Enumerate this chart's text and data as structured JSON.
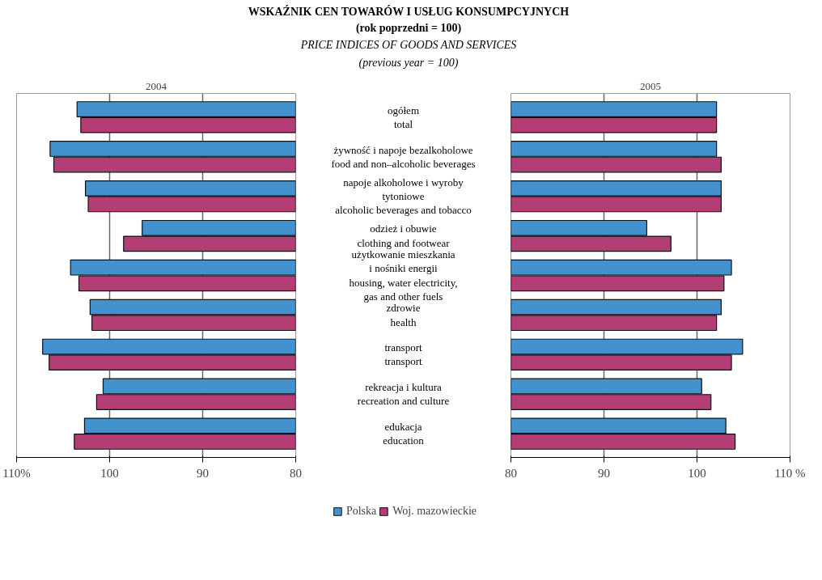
{
  "chart_data": [
    {
      "type": "bar",
      "orientation": "horizontal",
      "title": "WSKAŹNIK CEN TOWARÓW I USŁUG KONSUMPCYJNYCH\n(rok poprzedni = 100)",
      "subtitle": "PRICE INDICES OF GOODS AND SERVICES\n(previous year = 100)",
      "annotations": [
        "2004"
      ],
      "categories": [
        "ogółem\ntotal",
        "żywność i napoje bezalkoholowe\nfood and non–alcoholic beverages",
        "napoje alkoholowe i wyroby\ntytoniowe\nalcoholic beverages and tobacco",
        "odzież i obuwie\nclothing and footwear",
        "użytkowanie mieszkania\ni nośniki energii\nhousing, water electricity,\ngas and other fuels",
        "zdrowie\nhealth",
        "transport\ntransport",
        "rekreacja i kultura\nrecreation and culture",
        "edukacja\neducation"
      ],
      "series": [
        {
          "color": "#4391cd",
          "values": [
            103.5,
            106.4,
            102.6,
            96.5,
            104.2,
            102.1,
            107.2,
            100.7,
            102.7
          ]
        },
        {
          "color": "#b23e75",
          "values": [
            103.1,
            106.0,
            102.3,
            98.5,
            103.3,
            101.9,
            106.5,
            101.4,
            103.8
          ]
        }
      ],
      "xlim": [
        110,
        80
      ],
      "xticks": [
        {
          "value": 110,
          "label": "110%"
        },
        100,
        90,
        80
      ],
      "grid": "x"
    },
    {
      "type": "bar",
      "orientation": "horizontal",
      "annotations": [
        "2005"
      ],
      "categories": [
        null,
        null,
        null,
        null,
        null,
        null,
        null,
        null,
        null
      ],
      "series": [
        {
          "name": "Polska",
          "color": "#4391cd",
          "values": [
            102.1,
            102.1,
            102.6,
            94.6,
            103.7,
            102.6,
            104.9,
            100.5,
            103.1
          ]
        },
        {
          "name": "Woj. mazowieckie",
          "color": "#b23e75",
          "values": [
            102.1,
            102.6,
            102.6,
            97.2,
            102.9,
            102.1,
            103.7,
            101.5,
            104.1
          ]
        }
      ],
      "xlim": [
        80,
        110
      ],
      "xticks": [
        80,
        90,
        100,
        {
          "value": 110,
          "label": "110 %"
        }
      ],
      "grid": "x",
      "legend": "bottom"
    }
  ]
}
